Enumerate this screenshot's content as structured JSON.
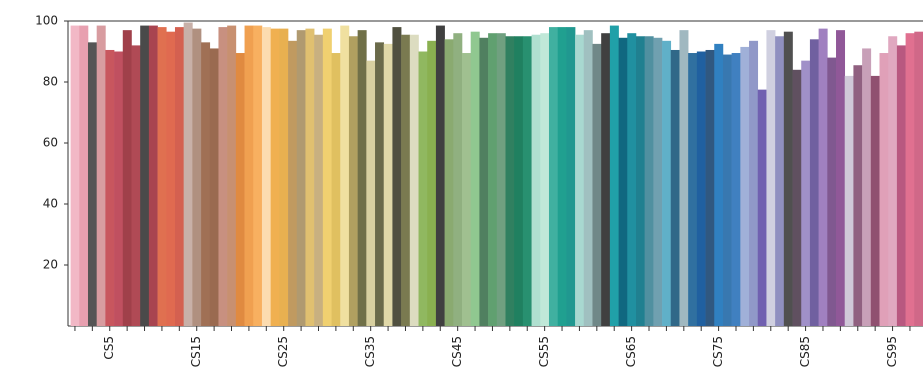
{
  "chart_data": {
    "type": "bar",
    "categories": [
      null,
      null,
      null,
      null,
      "CS5",
      null,
      null,
      null,
      null,
      null,
      null,
      null,
      null,
      null,
      "CS15",
      null,
      null,
      null,
      null,
      null,
      null,
      null,
      null,
      null,
      "CS25",
      null,
      null,
      null,
      null,
      null,
      null,
      null,
      null,
      null,
      "CS35",
      null,
      null,
      null,
      null,
      null,
      null,
      null,
      null,
      null,
      "CS45",
      null,
      null,
      null,
      null,
      null,
      null,
      null,
      null,
      null,
      "CS55",
      null,
      null,
      null,
      null,
      null,
      null,
      null,
      null,
      null,
      "CS65",
      null,
      null,
      null,
      null,
      null,
      null,
      null,
      null,
      null,
      "CS75",
      null,
      null,
      null,
      null,
      null,
      null,
      null,
      null,
      null,
      "CS85",
      null,
      null,
      null,
      null,
      null,
      null,
      null,
      null,
      null,
      "CS95",
      null,
      null,
      null
    ],
    "values": [
      98.5,
      98.5,
      93,
      98.5,
      90.5,
      90,
      97,
      92,
      98.5,
      98.5,
      98,
      96.5,
      98,
      99.5,
      97.5,
      93,
      91,
      98,
      98.5,
      89.5,
      98.5,
      98.5,
      98,
      97.5,
      97.5,
      93.5,
      97,
      97.5,
      95.5,
      97.5,
      89.5,
      98.5,
      95,
      97,
      87,
      93,
      92.5,
      98,
      95.5,
      95.5,
      90,
      93.5,
      98.5,
      94,
      96,
      89.5,
      96.5,
      94.5,
      96,
      96,
      95,
      95,
      95,
      95.5,
      96,
      98,
      98,
      98,
      95.5,
      97,
      92.5,
      96,
      98.5,
      94.5,
      96,
      95,
      95,
      94.5,
      93.5,
      90.5,
      97,
      89.5,
      90,
      90.5,
      92.5,
      89,
      89.5,
      91.5,
      93.5,
      77.5,
      97,
      95,
      96.5,
      84,
      87,
      94,
      97.5,
      88,
      97,
      82,
      85.5,
      91,
      82,
      89.5,
      95,
      92,
      96,
      96.5
    ],
    "colors": [
      "#f2b8c6",
      "#e8a0b0",
      "#555555",
      "#d89ca0",
      "#c8565e",
      "#c05060",
      "#a0404a",
      "#b04a55",
      "#4a4a4a",
      "#a84450",
      "#e07050",
      "#e06a50",
      "#d46050",
      "#c8b0a8",
      "#b09080",
      "#a07055",
      "#9a6a50",
      "#c89080",
      "#c89070",
      "#e08a40",
      "#f0a050",
      "#f8b060",
      "#fcdcb0",
      "#f0b050",
      "#e8b050",
      "#c09a60",
      "#b09a70",
      "#e0c070",
      "#c8b080",
      "#f0d070",
      "#e0c060",
      "#f0e0a0",
      "#b0a060",
      "#707048",
      "#d8d0a0",
      "#6a6a4a",
      "#e0d8a8",
      "#505040",
      "#7a7a50",
      "#dcdcc0",
      "#90b860",
      "#8ab050",
      "#404040",
      "#8aaa70",
      "#90b080",
      "#a0c090",
      "#90c890",
      "#508060",
      "#60a070",
      "#70a080",
      "#308060",
      "#208060",
      "#289070",
      "#b0e0d0",
      "#c0e8d8",
      "#40b0a0",
      "#20a090",
      "#209890",
      "#a8d8d0",
      "#a0c0c0",
      "#708888",
      "#404040",
      "#20a0a8",
      "#106880",
      "#2090a0",
      "#208090",
      "#5090a0",
      "#70a0b0",
      "#60b0c8",
      "#306888",
      "#a0b8c0",
      "#3070a0",
      "#2060a0",
      "#305880",
      "#3080c0",
      "#3878b0",
      "#4080c0",
      "#a0b0d8",
      "#9098c8",
      "#7060b0",
      "#d0d0e0",
      "#9090c0",
      "#505050",
      "#605060",
      "#a090c8",
      "#7060a0",
      "#a080c0",
      "#805890",
      "#905898",
      "#d0c8d8",
      "#906080",
      "#c8a0b8",
      "#905070",
      "#e0a0b8",
      "#e0a8c0",
      "#b85880",
      "#e07090",
      "#d06888"
    ],
    "ylim": [
      0,
      100
    ],
    "yticks": [
      20,
      40,
      60,
      80,
      100
    ]
  }
}
